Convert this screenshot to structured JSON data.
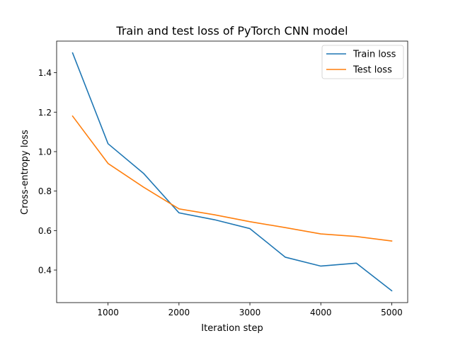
{
  "chart_data": {
    "type": "line",
    "title": "Train and test loss of PyTorch CNN model",
    "xlabel": "Iteration step",
    "ylabel": "Cross-entropy loss",
    "x": [
      500,
      1000,
      1500,
      2000,
      2500,
      3000,
      3500,
      4000,
      4500,
      5000
    ],
    "series": [
      {
        "name": "Train loss",
        "color": "#1f77b4",
        "values": [
          1.5,
          1.04,
          0.89,
          0.69,
          0.655,
          0.61,
          0.465,
          0.42,
          0.435,
          0.295
        ]
      },
      {
        "name": "Test loss",
        "color": "#ff7f0e",
        "values": [
          1.18,
          0.94,
          0.82,
          0.71,
          0.68,
          0.645,
          0.615,
          0.583,
          0.57,
          0.547
        ]
      }
    ],
    "xlim": [
      275,
      5225
    ],
    "ylim": [
      0.235,
      1.56
    ],
    "xticks": [
      1000,
      2000,
      3000,
      4000,
      5000
    ],
    "xtick_labels": [
      "1000",
      "2000",
      "3000",
      "4000",
      "5000"
    ],
    "yticks": [
      0.4,
      0.6,
      0.8,
      1.0,
      1.2,
      1.4
    ],
    "ytick_labels": [
      "0.4",
      "0.6",
      "0.8",
      "1.0",
      "1.2",
      "1.4"
    ],
    "grid": false,
    "legend_position": "upper right"
  }
}
